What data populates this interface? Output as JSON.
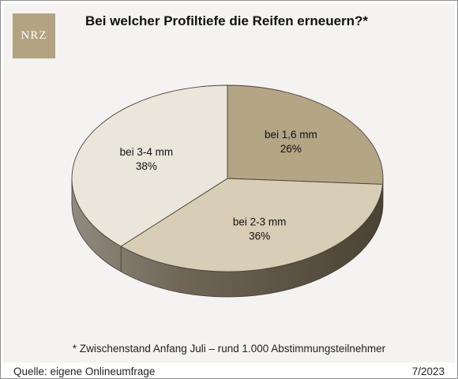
{
  "logo": {
    "text": "NRZ"
  },
  "chart_data": {
    "type": "pie",
    "title": "Bei welcher Profiltiefe die Reifen erneuern?*",
    "slices": [
      {
        "label": "bei 1,6 mm",
        "value": 26,
        "value_label": "26%",
        "color": "#b4a585"
      },
      {
        "label": "bei 2-3 mm",
        "value": 36,
        "value_label": "36%",
        "color": "#d8cdb5"
      },
      {
        "label": "bei 3-4 mm",
        "value": 38,
        "value_label": "38%",
        "color": "#ebe6dc"
      }
    ],
    "footnote": "* Zwischenstand Anfang Juli – rund 1.000 Abstimmungsteilnehmer"
  },
  "footer": {
    "source": "Quelle: eigene Onlineumfrage",
    "date": "7/2023"
  }
}
